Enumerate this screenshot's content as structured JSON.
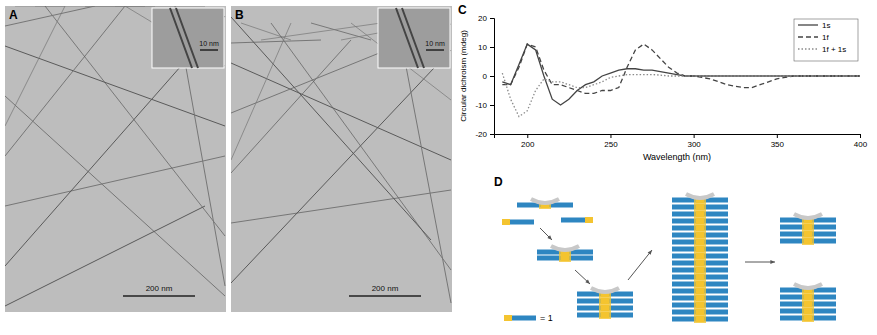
{
  "panels": [
    {
      "label": "A",
      "scale_bar": "200 nm",
      "inset_scale_bar": "10 nm"
    },
    {
      "label": "B",
      "scale_bar": "200 nm",
      "inset_scale_bar": "10 nm"
    },
    {
      "label": "C"
    },
    {
      "label": "D",
      "key": "= 1"
    }
  ],
  "chart_data": {
    "type": "line",
    "xlabel": "Wavelength (nm)",
    "ylabel": "Circular dichroism (mdeg)",
    "x": [
      185,
      190,
      195,
      200,
      205,
      210,
      215,
      220,
      225,
      230,
      235,
      240,
      245,
      250,
      255,
      260,
      265,
      270,
      275,
      280,
      285,
      290,
      295,
      300,
      305,
      310,
      315,
      320,
      325,
      330,
      335,
      340,
      345,
      350,
      355,
      360,
      365,
      370,
      375,
      380,
      385,
      390,
      395,
      400
    ],
    "series": [
      {
        "name": "1s",
        "color": "#444444",
        "line_style": "solid",
        "values": [
          -2,
          -3,
          4,
          11,
          9,
          0,
          -8,
          -10,
          -8,
          -5,
          -3,
          -2,
          0,
          1,
          2,
          2.5,
          2.5,
          2,
          2,
          1.5,
          1,
          0.5,
          0,
          0,
          0,
          0,
          0,
          0,
          0,
          0,
          0,
          0,
          0,
          0,
          0,
          0,
          0,
          0,
          0,
          0,
          0,
          0,
          0,
          0
        ]
      },
      {
        "name": "1f",
        "color": "#444444",
        "line_style": "dashed",
        "values": [
          -3,
          -3,
          3,
          11,
          10,
          2,
          -3,
          -3,
          -4,
          -5,
          -6,
          -6,
          -5,
          -5,
          -4,
          3,
          9,
          11,
          9,
          6,
          3,
          1,
          0,
          0,
          -0.5,
          -1,
          -2,
          -3,
          -3.5,
          -4,
          -4,
          -3,
          -2,
          -1,
          -0.5,
          0,
          0,
          0,
          0,
          0,
          0,
          0,
          0,
          0
        ]
      },
      {
        "name": "1f + 1s",
        "color": "#8a8a8a",
        "line_style": "dotted",
        "values": [
          1,
          -8,
          -14,
          -12,
          -5,
          -1,
          -2,
          -2,
          -3,
          -4,
          -4,
          -3,
          -2,
          -0.5,
          0,
          0.5,
          0.5,
          0.5,
          0.5,
          0.3,
          0,
          0,
          0,
          0,
          0,
          0,
          0,
          0,
          0,
          0,
          0,
          0,
          0,
          0,
          0,
          0,
          0,
          0,
          0,
          0,
          0,
          0,
          0,
          0
        ]
      }
    ],
    "xlim": [
      180,
      400
    ],
    "ylim": [
      -20,
      20
    ],
    "xticks": [
      200,
      250,
      300,
      350,
      400
    ],
    "yticks": [
      -20,
      -10,
      0,
      10,
      20
    ],
    "legend": "upper right"
  }
}
